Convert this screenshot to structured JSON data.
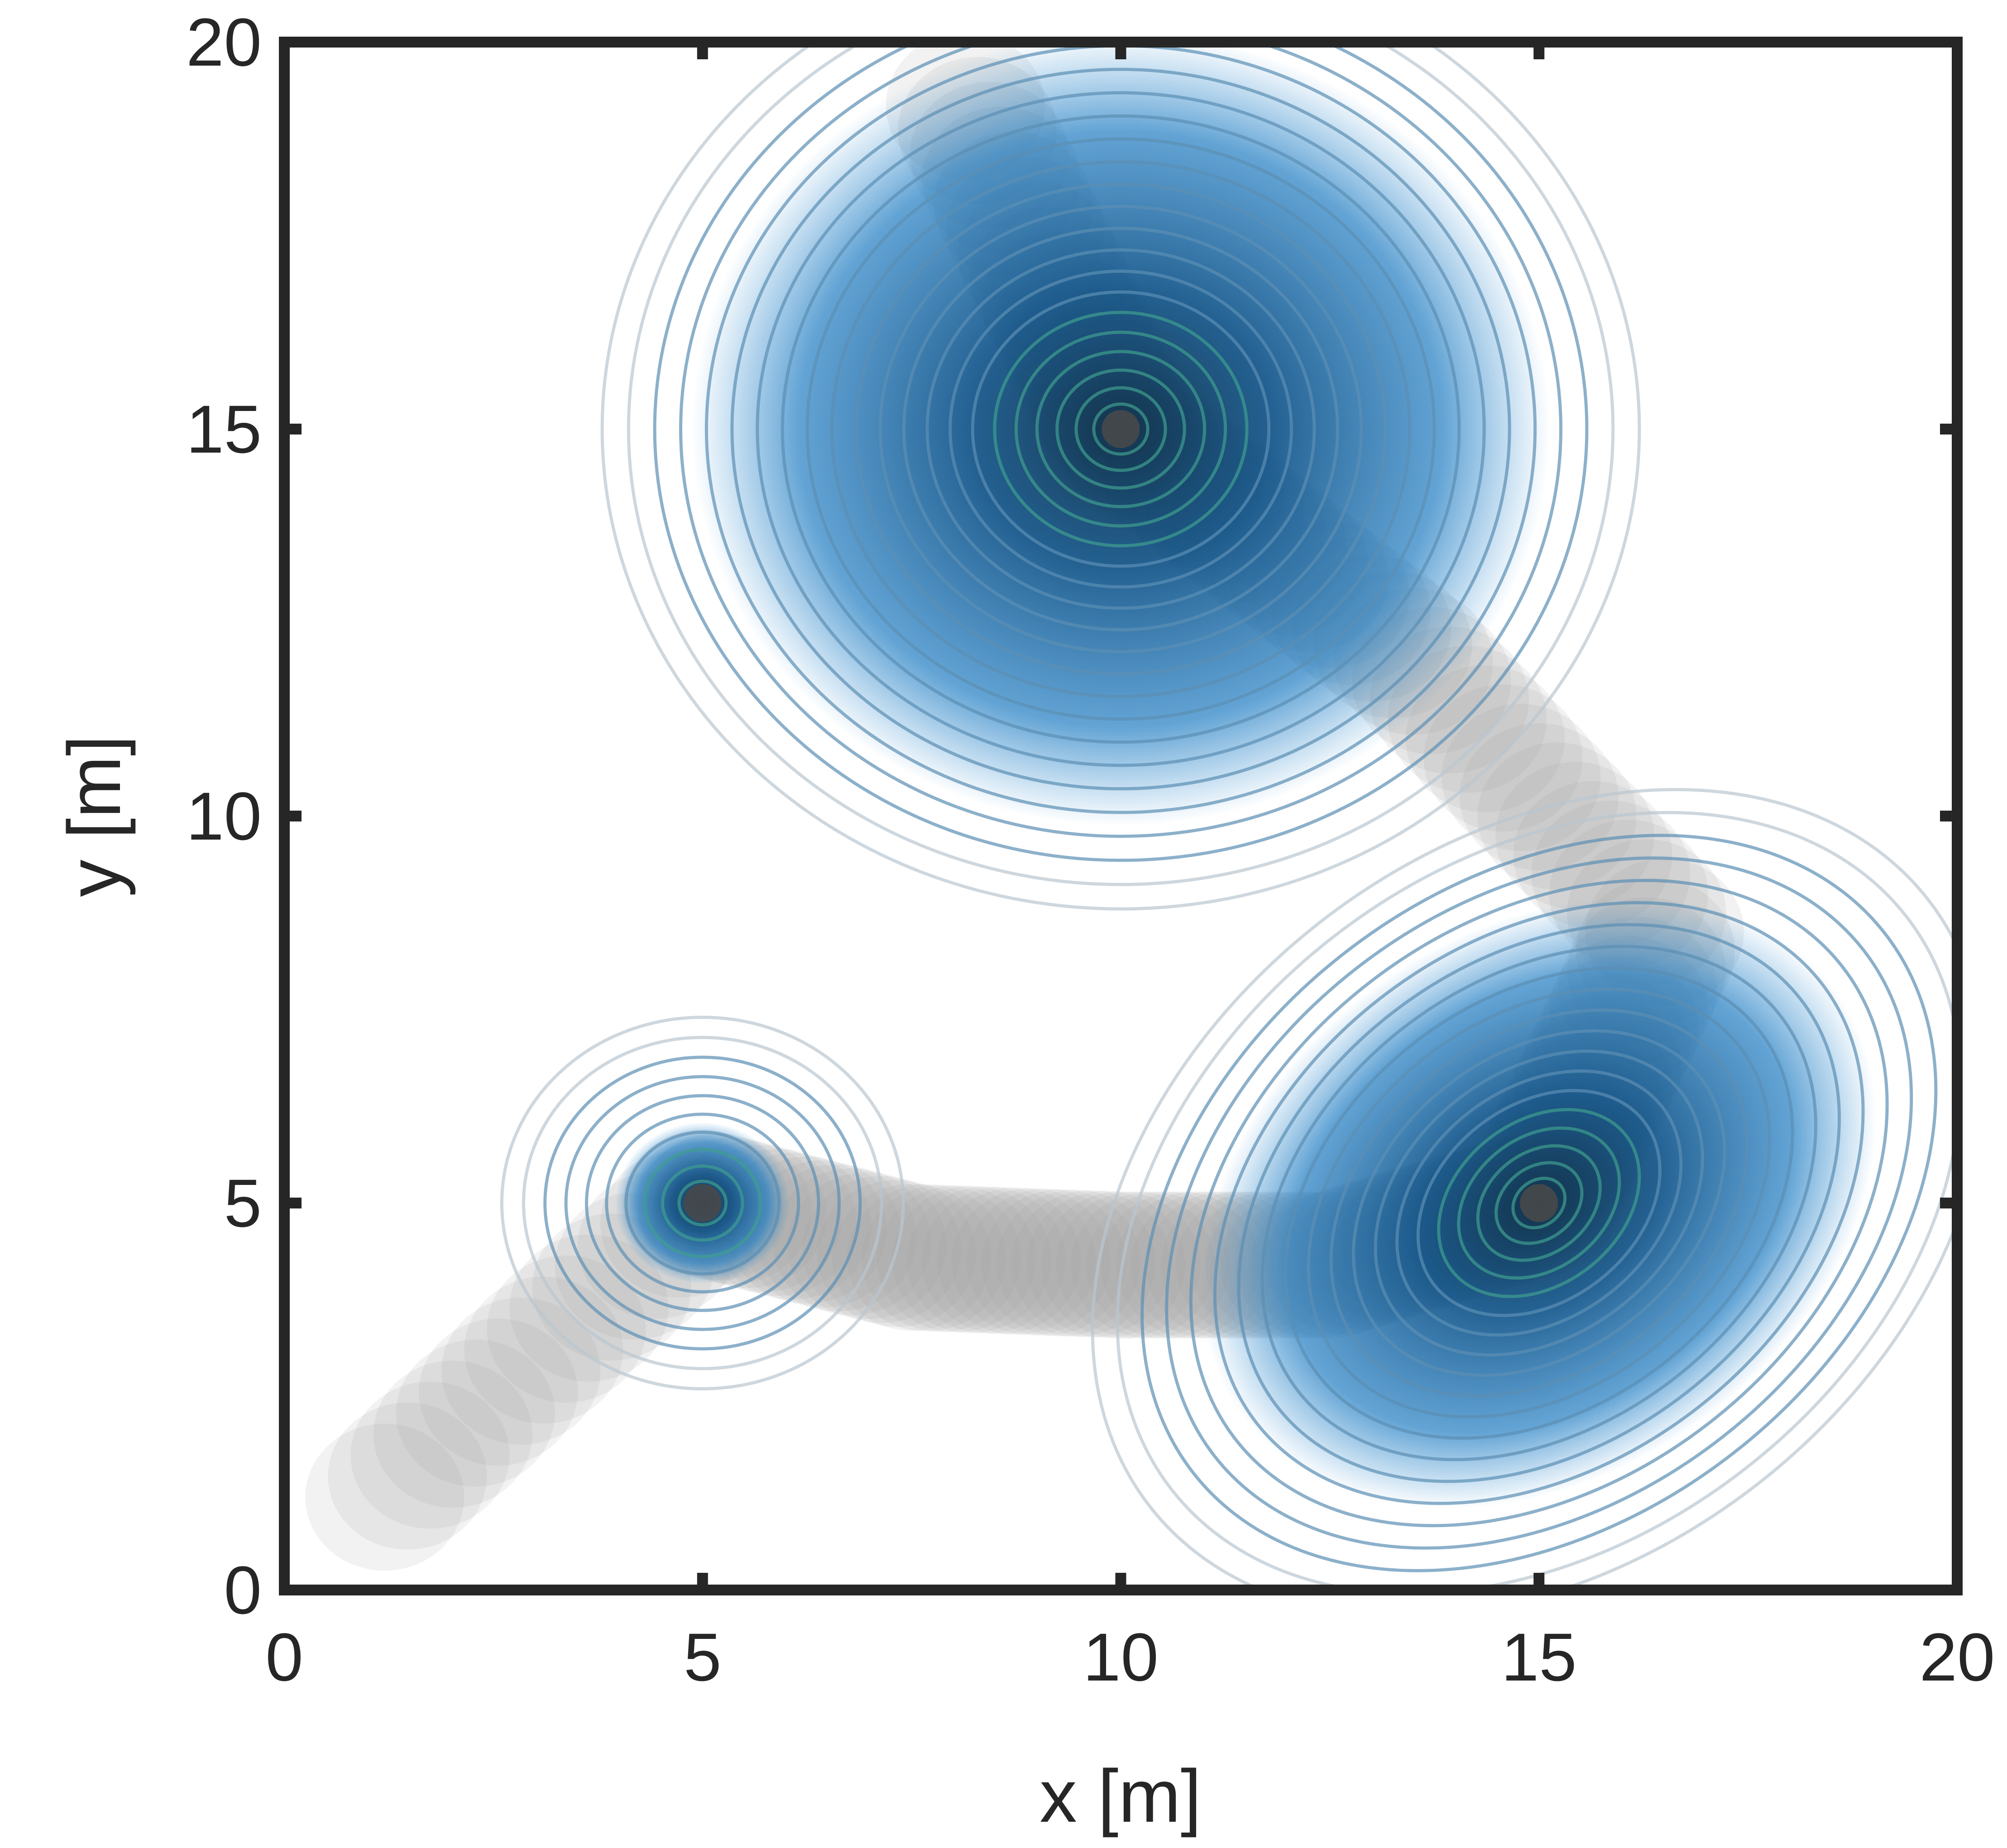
{
  "chart_data": {
    "type": "contour",
    "title": "",
    "xlabel": "x [m]",
    "ylabel": "y [m]",
    "xlim": [
      0,
      20
    ],
    "ylim": [
      0,
      20
    ],
    "xticks": [
      0,
      5,
      10,
      15,
      20
    ],
    "yticks": [
      0,
      5,
      10,
      15,
      20
    ],
    "grid": false,
    "colors": {
      "axis": "#262626",
      "trajectory": "#9a9a9a",
      "density_fill": "#0b5fa5",
      "contour_outer": "#b9c6cf",
      "contour_inner": "#5b8fb4",
      "contour_core": "#3f9e8f",
      "target_center": "#4a4a4a"
    },
    "targets": [
      {
        "x": 5,
        "y": 5
      },
      {
        "x": 10,
        "y": 15
      },
      {
        "x": 15,
        "y": 5
      }
    ],
    "trajectory": [
      {
        "x": 1.2,
        "y": 1.2
      },
      {
        "x": 5,
        "y": 5
      },
      {
        "x": 7.5,
        "y": 4.3
      },
      {
        "x": 10,
        "y": 4.2
      },
      {
        "x": 12.5,
        "y": 4.2
      },
      {
        "x": 15,
        "y": 5
      },
      {
        "x": 16.5,
        "y": 8.5
      },
      {
        "x": 13.5,
        "y": 12
      },
      {
        "x": 10,
        "y": 15
      },
      {
        "x": 8,
        "y": 19.5
      }
    ]
  }
}
